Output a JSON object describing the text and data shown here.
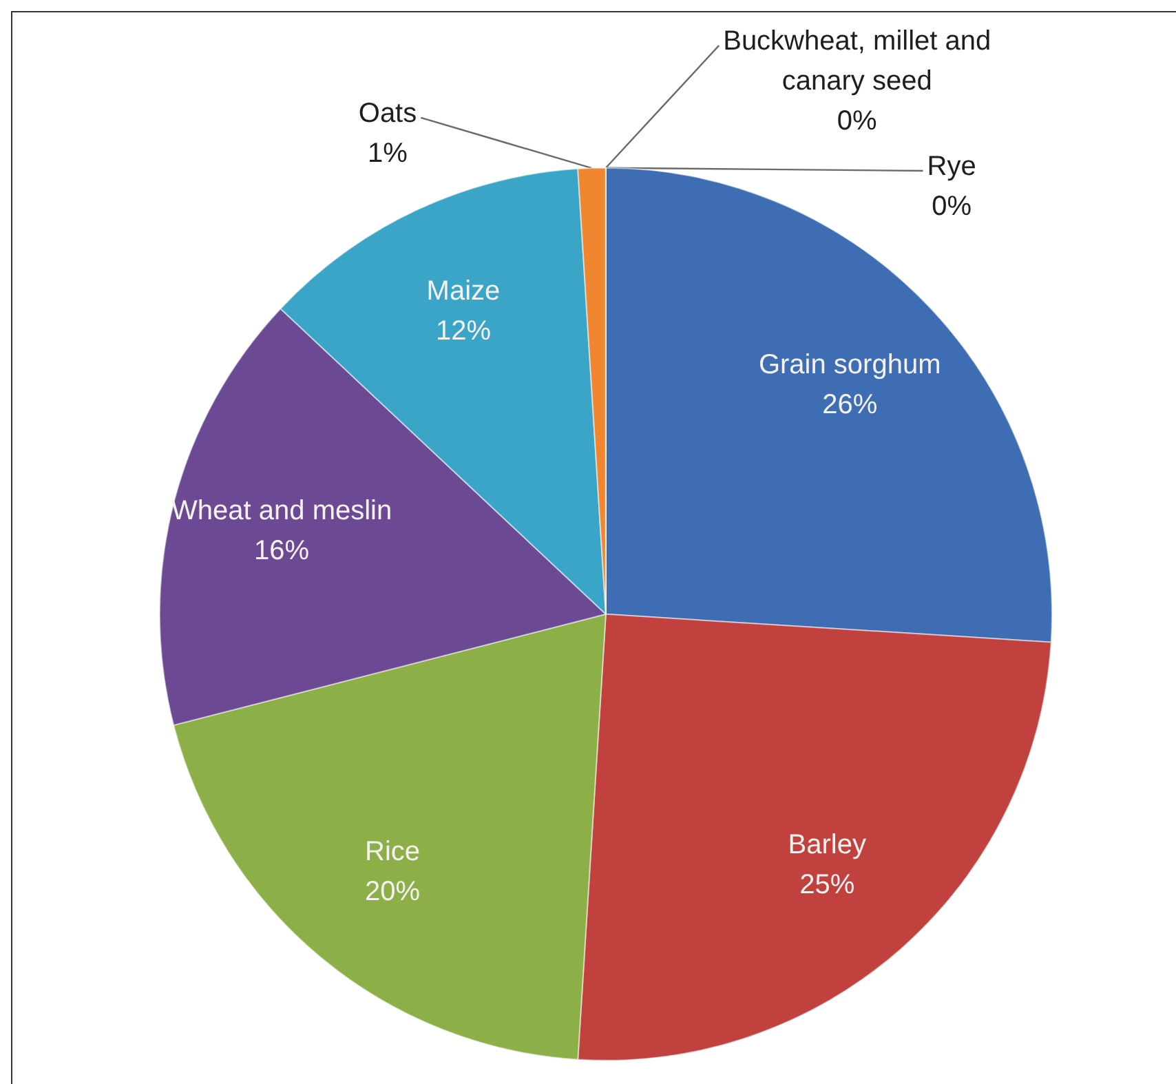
{
  "chart_data": {
    "type": "pie",
    "categories": [
      "Grain sorghum",
      "Barley",
      "Rice",
      "Wheat and meslin",
      "Maize",
      "Oats",
      "Buckwheat, millet and canary seed",
      "Rye"
    ],
    "values": [
      26,
      25,
      20,
      16,
      12,
      1,
      0,
      0
    ],
    "value_labels": [
      "26%",
      "25%",
      "20%",
      "16%",
      "12%",
      "1%",
      "0%",
      "0%"
    ],
    "colors": [
      "#3f6db3",
      "#c0413e",
      "#8cb047",
      "#6b4a93",
      "#3aa5c6",
      "#f08630",
      "#2c4d75",
      "#772c2a"
    ],
    "legend": false
  }
}
